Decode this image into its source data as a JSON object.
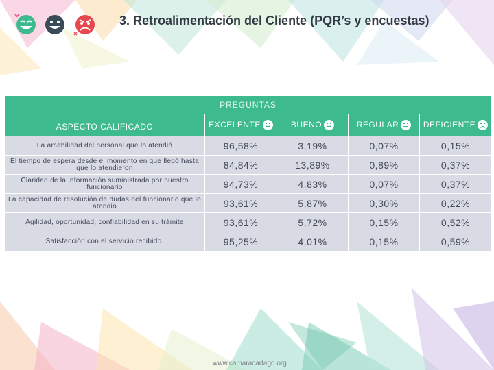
{
  "title": "3. Retroalimentación del Cliente (PQR’s y encuestas)",
  "colors": {
    "header_green": "#3dbb8e",
    "row_gray": "#d9dbe4",
    "title_text": "#333a44"
  },
  "icons": [
    "happy-face-icon",
    "smile-face-icon",
    "angry-face-icon"
  ],
  "table": {
    "top_header": "PREGUNTAS",
    "columns": {
      "aspect": "ASPECTO CALIFICADO",
      "excelente": "EXCELENTE",
      "bueno": "BUENO",
      "regular": "REGULAR",
      "deficiente": "DEFICIENTE"
    },
    "rows": [
      {
        "aspect": "La amabilidad del personal que lo atendió",
        "excelente": "96,58%",
        "bueno": "3,19%",
        "regular": "0,07%",
        "deficiente": "0,15%"
      },
      {
        "aspect": "El tiempo de espera desde el momento en que llegó hasta que lo atendieron",
        "excelente": "84,84%",
        "bueno": "13,89%",
        "regular": "0,89%",
        "deficiente": "0,37%"
      },
      {
        "aspect": "Claridad de la información suministrada por nuestro funcionario",
        "excelente": "94,73%",
        "bueno": "4,83%",
        "regular": "0,07%",
        "deficiente": "0,37%"
      },
      {
        "aspect": "La capacidad de resolución de dudas del funcionario que lo atendió",
        "excelente": "93,61%",
        "bueno": "5,87%",
        "regular": "0,30%",
        "deficiente": "0,22%"
      },
      {
        "aspect": "Agilidad, oportunidad, confiabilidad en su trámite",
        "excelente": "93,61%",
        "bueno": "5,72%",
        "regular": "0,15%",
        "deficiente": "0,52%"
      },
      {
        "aspect": "Satisfacción con el servicio recibido.",
        "excelente": "95,25%",
        "bueno": "4,01%",
        "regular": "0,15%",
        "deficiente": "0,59%"
      }
    ]
  },
  "footer": "www.camaracartago.org"
}
